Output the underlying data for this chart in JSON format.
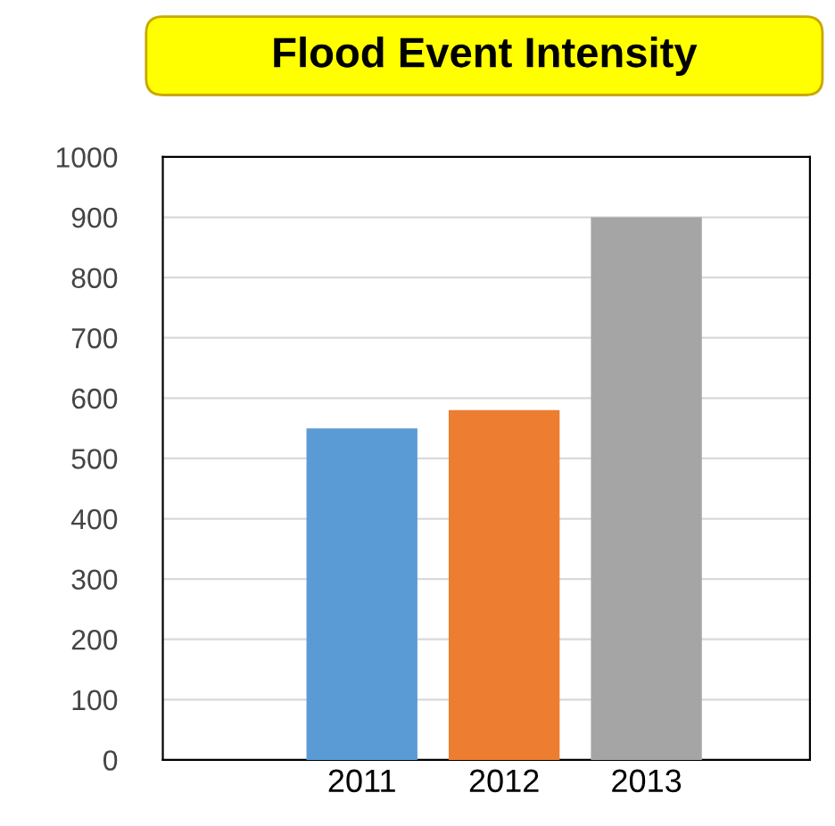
{
  "chart_data": {
    "type": "bar",
    "title": "Flood Event Intensity",
    "categories": [
      "2011",
      "2012",
      "2013"
    ],
    "values": [
      550,
      580,
      900
    ],
    "colors": [
      "#5b9bd5",
      "#ed7d31",
      "#a5a5a5"
    ],
    "ylim": [
      0,
      1000
    ],
    "yticks": [
      0,
      100,
      200,
      300,
      400,
      500,
      600,
      700,
      800,
      900,
      1000
    ],
    "grid": "y"
  }
}
